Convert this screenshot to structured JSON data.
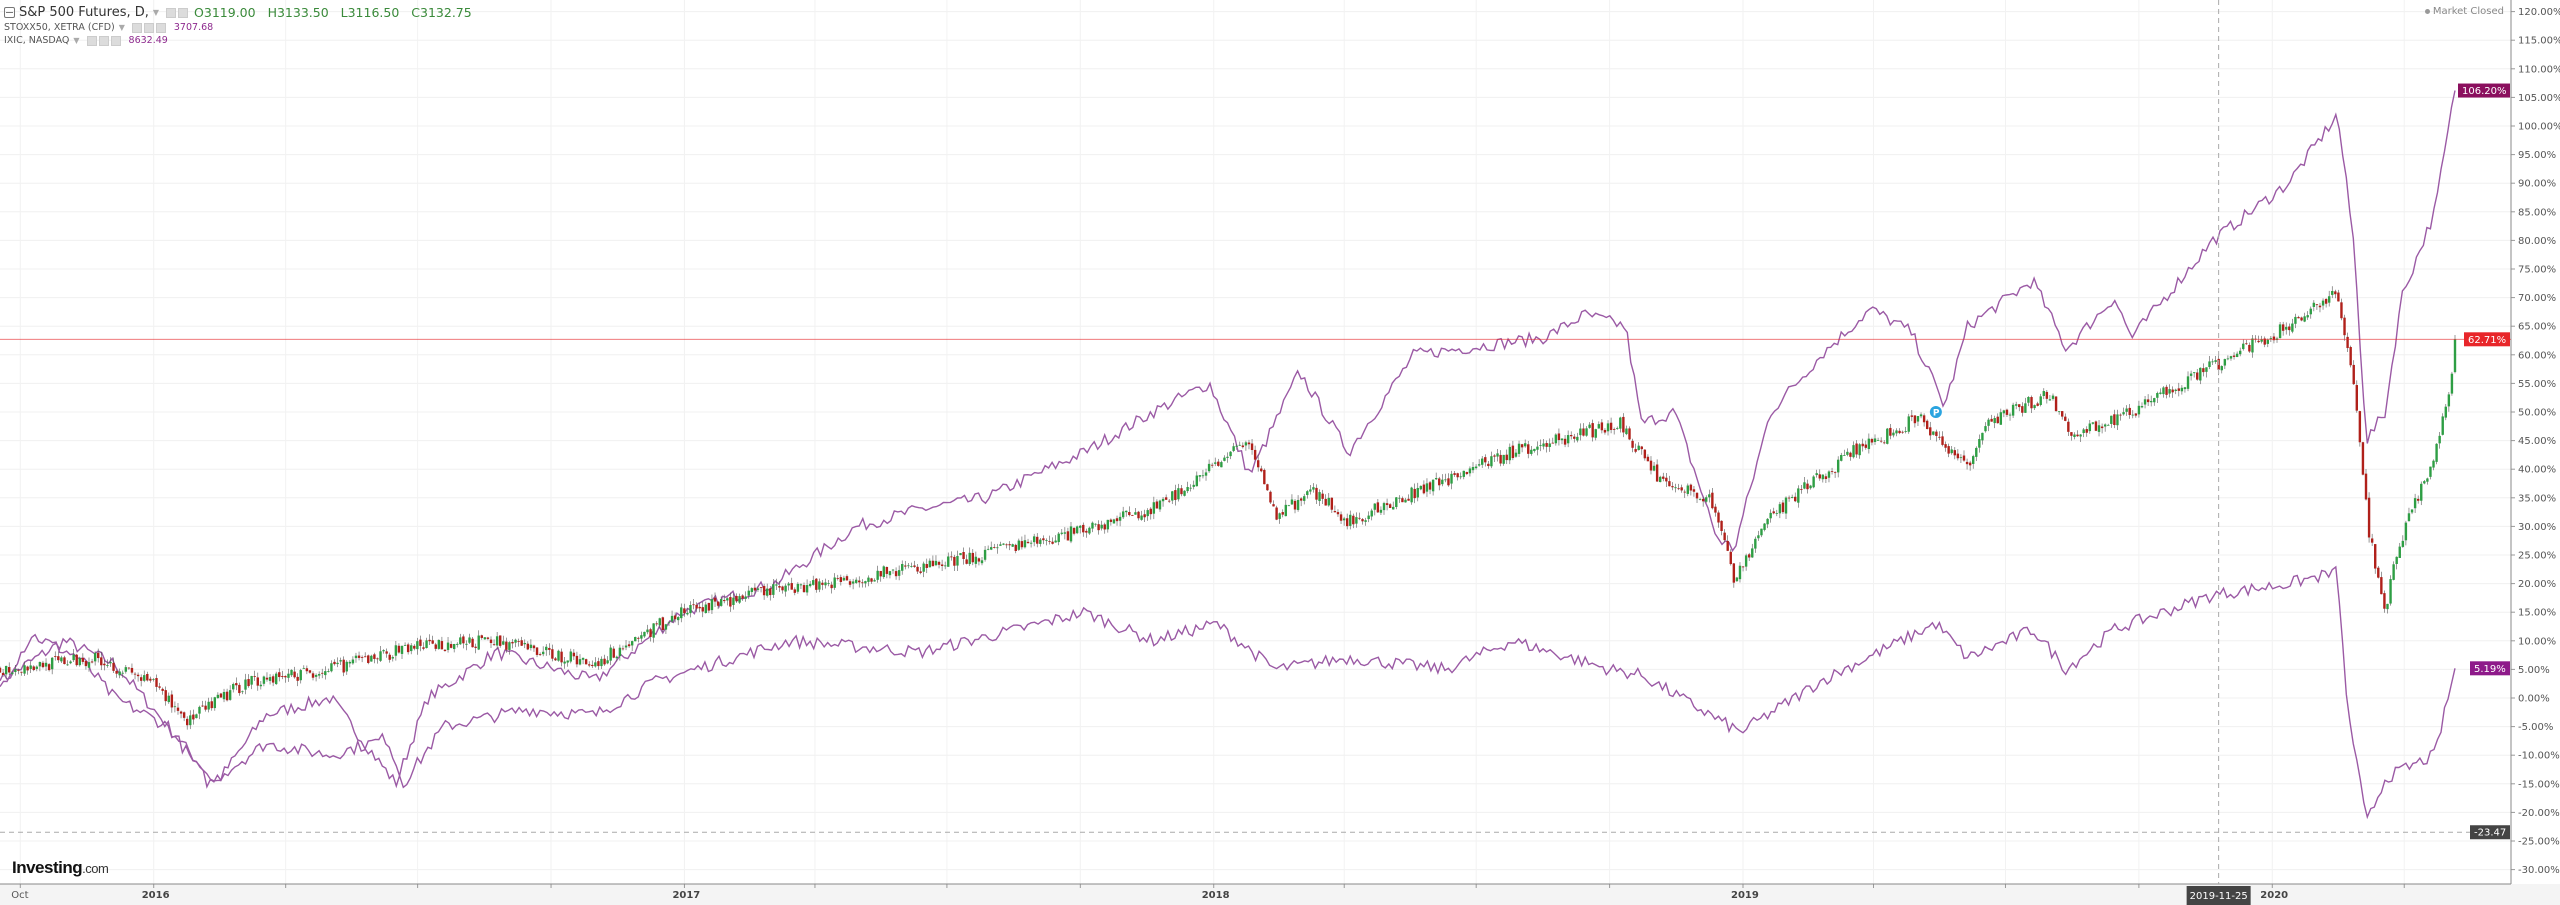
{
  "header": {
    "symbol": "S&P 500 Futures, D,",
    "ohlc": {
      "open": "O3119.00",
      "high": "H3133.50",
      "low": "L3116.50",
      "close": "C3132.75"
    },
    "compare": [
      {
        "name": "STOXX50, XETRA (CFD)",
        "value": "3707.68"
      },
      {
        "name": "IXIC, NASDAQ",
        "value": "8632.49"
      }
    ],
    "status": "Market Closed"
  },
  "logo": {
    "brand": "Investing",
    "suffix": ".com"
  },
  "colors": {
    "up": "#2e9e44",
    "down": "#b0201a",
    "compare_line": "#9b5aa5",
    "price_line": "#e8262a",
    "nasdaq_badge": "#8b0f5e",
    "stoxx_badge": "#8e1a8a",
    "crosshair_badge": "#444444"
  },
  "chart_data": {
    "type": "line",
    "title": "",
    "y_axis": {
      "position": "right",
      "unit": "%",
      "ylim": [
        -32,
        122
      ],
      "ticks": [
        "120.00%",
        "115.00%",
        "110.00%",
        "105.00%",
        "100.00%",
        "95.00%",
        "90.00%",
        "85.00%",
        "80.00%",
        "75.00%",
        "70.00%",
        "65.00%",
        "60.00%",
        "55.00%",
        "50.00%",
        "45.00%",
        "40.00%",
        "35.00%",
        "30.00%",
        "25.00%",
        "20.00%",
        "15.00%",
        "10.00%",
        "5.00%",
        "0.00%",
        "-5.00%",
        "-10.00%",
        "-15.00%",
        "-20.00%",
        "-25.00%",
        "-30.00%"
      ]
    },
    "x_axis": {
      "xlim": [
        "2015-09-17",
        "2020-05-06"
      ],
      "tick_labels": [
        {
          "date": "2015-10-01",
          "label": "Oct"
        },
        {
          "date": "2016-01-01",
          "label": "2016"
        },
        {
          "date": "2017-01-01",
          "label": "2017"
        },
        {
          "date": "2018-01-01",
          "label": "2018"
        },
        {
          "date": "2019-01-01",
          "label": "2019"
        },
        {
          "date": "2020-01-01",
          "label": "2020"
        }
      ]
    },
    "grid": true,
    "crosshair": {
      "date": "2019-11-25",
      "value": -23.47,
      "date_label": "2019-11-25",
      "value_label": "-23.47"
    },
    "marker": {
      "date": "2019-05-14",
      "value": 50,
      "label": "P"
    },
    "series": [
      {
        "name": "S&P 500 Futures",
        "style": "candlestick",
        "last_label": "62.71%",
        "points": [
          [
            "2015-09-17",
            5
          ],
          [
            "2015-11-24",
            7
          ],
          [
            "2016-01-03",
            2
          ],
          [
            "2016-01-25",
            -4
          ],
          [
            "2016-03-06",
            3
          ],
          [
            "2016-05-02",
            5
          ],
          [
            "2016-06-28",
            9
          ],
          [
            "2016-08-24",
            10
          ],
          [
            "2016-10-31",
            6
          ],
          [
            "2016-12-30",
            15
          ],
          [
            "2017-03-04",
            19
          ],
          [
            "2017-04-30",
            21
          ],
          [
            "2017-07-07",
            24
          ],
          [
            "2017-09-13",
            28
          ],
          [
            "2017-11-20",
            33
          ],
          [
            "2018-01-26",
            45
          ],
          [
            "2018-02-12",
            32
          ],
          [
            "2018-03-12",
            36
          ],
          [
            "2018-04-04",
            31
          ],
          [
            "2018-05-30",
            37
          ],
          [
            "2018-07-26",
            43
          ],
          [
            "2018-10-08",
            48
          ],
          [
            "2018-10-19",
            44
          ],
          [
            "2018-11-05",
            38
          ],
          [
            "2018-12-09",
            35
          ],
          [
            "2018-12-26",
            21
          ],
          [
            "2019-01-20",
            32
          ],
          [
            "2019-03-18",
            43
          ],
          [
            "2019-05-02",
            49
          ],
          [
            "2019-06-05",
            40
          ],
          [
            "2019-06-16",
            48
          ],
          [
            "2019-07-31",
            53
          ],
          [
            "2019-08-17",
            46
          ],
          [
            "2019-09-26",
            50
          ],
          [
            "2019-11-21",
            58
          ],
          [
            "2020-01-12",
            65
          ],
          [
            "2020-02-15",
            71
          ],
          [
            "2020-02-26",
            55
          ],
          [
            "2020-03-08",
            28
          ],
          [
            "2020-03-19",
            16
          ],
          [
            "2020-03-30",
            28
          ],
          [
            "2020-04-22",
            42
          ],
          [
            "2020-05-03",
            55
          ],
          [
            "2020-05-06",
            62.71
          ]
        ]
      },
      {
        "name": "IXIC, NASDAQ",
        "style": "line",
        "last_label": "106.20%",
        "points": [
          [
            "2015-09-17",
            3
          ],
          [
            "2015-10-31",
            10
          ],
          [
            "2015-12-05",
            6
          ],
          [
            "2016-01-11",
            -5
          ],
          [
            "2016-02-13",
            -15
          ],
          [
            "2016-03-18",
            -3
          ],
          [
            "2016-05-02",
            0
          ],
          [
            "2016-06-16",
            -15
          ],
          [
            "2016-07-08",
            0
          ],
          [
            "2016-08-24",
            8
          ],
          [
            "2016-10-31",
            3
          ],
          [
            "2016-12-30",
            15
          ],
          [
            "2017-03-04",
            20
          ],
          [
            "2017-04-30",
            30
          ],
          [
            "2017-06-13",
            33
          ],
          [
            "2017-07-28",
            35
          ],
          [
            "2017-10-04",
            43
          ],
          [
            "2017-11-20",
            50
          ],
          [
            "2017-12-29",
            55
          ],
          [
            "2018-01-26",
            39
          ],
          [
            "2018-03-01",
            57
          ],
          [
            "2018-04-04",
            43
          ],
          [
            "2018-05-19",
            60
          ],
          [
            "2018-08-17",
            63
          ],
          [
            "2018-09-14",
            67
          ],
          [
            "2018-10-12",
            65
          ],
          [
            "2018-10-23",
            48
          ],
          [
            "2018-11-15",
            50
          ],
          [
            "2018-12-14",
            28
          ],
          [
            "2018-12-26",
            26
          ],
          [
            "2019-01-20",
            50
          ],
          [
            "2019-02-24",
            60
          ],
          [
            "2019-03-30",
            68
          ],
          [
            "2019-04-27",
            64
          ],
          [
            "2019-05-20",
            51
          ],
          [
            "2019-06-05",
            65
          ],
          [
            "2019-07-20",
            73
          ],
          [
            "2019-08-12",
            61
          ],
          [
            "2019-09-14",
            70
          ],
          [
            "2019-09-26",
            63
          ],
          [
            "2019-11-21",
            80
          ],
          [
            "2020-01-12",
            90
          ],
          [
            "2020-02-15",
            102
          ],
          [
            "2020-02-26",
            80
          ],
          [
            "2020-03-06",
            45
          ],
          [
            "2020-03-19",
            50
          ],
          [
            "2020-03-30",
            70
          ],
          [
            "2020-04-22",
            85
          ],
          [
            "2020-05-06",
            106.2
          ]
        ]
      },
      {
        "name": "STOXX50, XETRA (CFD)",
        "style": "line",
        "last_label": "5.19%",
        "points": [
          [
            "2015-09-17",
            2
          ],
          [
            "2015-10-09",
            11
          ],
          [
            "2015-11-11",
            7
          ],
          [
            "2015-12-05",
            0
          ],
          [
            "2016-01-11",
            -5
          ],
          [
            "2016-02-08",
            -15
          ],
          [
            "2016-03-18",
            -8
          ],
          [
            "2016-05-02",
            -10
          ],
          [
            "2016-06-10",
            -7
          ],
          [
            "2016-06-21",
            -15
          ],
          [
            "2016-07-19",
            -5
          ],
          [
            "2016-09-14",
            -2
          ],
          [
            "2016-10-31",
            -3
          ],
          [
            "2016-12-13",
            3
          ],
          [
            "2017-03-15",
            10
          ],
          [
            "2017-06-13",
            8
          ],
          [
            "2017-08-19",
            12
          ],
          [
            "2017-10-04",
            15
          ],
          [
            "2017-11-20",
            10
          ],
          [
            "2018-01-03",
            13
          ],
          [
            "2018-02-12",
            5
          ],
          [
            "2018-04-04",
            7
          ],
          [
            "2018-06-10",
            5
          ],
          [
            "2018-07-26",
            10
          ],
          [
            "2018-10-01",
            5
          ],
          [
            "2018-10-23",
            4
          ],
          [
            "2018-12-30",
            -6
          ],
          [
            "2019-02-24",
            3
          ],
          [
            "2019-05-14",
            13
          ],
          [
            "2019-06-05",
            7
          ],
          [
            "2019-07-20",
            12
          ],
          [
            "2019-08-12",
            5
          ],
          [
            "2019-09-14",
            12
          ],
          [
            "2019-11-21",
            18
          ],
          [
            "2020-01-12",
            20
          ],
          [
            "2020-02-15",
            22
          ],
          [
            "2020-02-21",
            0
          ],
          [
            "2020-03-06",
            -22
          ],
          [
            "2020-03-19",
            -14
          ],
          [
            "2020-04-22",
            -10
          ],
          [
            "2020-05-06",
            5.19
          ]
        ]
      }
    ]
  }
}
